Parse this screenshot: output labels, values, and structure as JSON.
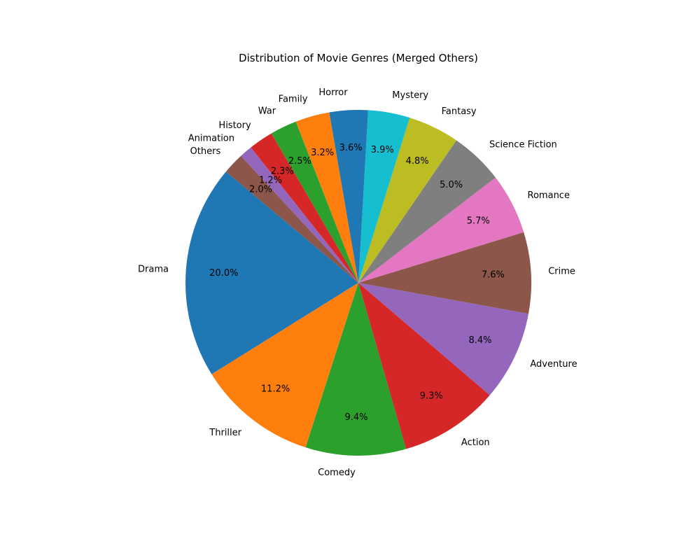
{
  "chart_data": {
    "type": "pie",
    "title": "Distribution of Movie Genres (Merged Others)",
    "start_angle_deg": 140,
    "direction": "counterclockwise",
    "labels": [
      "Drama",
      "Thriller",
      "Comedy",
      "Action",
      "Adventure",
      "Crime",
      "Romance",
      "Science Fiction",
      "Fantasy",
      "Mystery",
      "Horror",
      "Family",
      "War",
      "History",
      "Animation",
      "Others"
    ],
    "values": [
      20.0,
      11.2,
      9.4,
      9.3,
      8.4,
      7.6,
      5.7,
      5.0,
      4.8,
      3.9,
      3.6,
      3.2,
      2.5,
      2.3,
      1.2,
      2.0
    ],
    "value_labels": [
      "20.0%",
      "11.2%",
      "9.4%",
      "9.3%",
      "8.4%",
      "7.6%",
      "5.7%",
      "5.0%",
      "4.8%",
      "3.9%",
      "3.6%",
      "3.2%",
      "2.5%",
      "2.3%",
      "1.2%",
      "2.0%"
    ],
    "colors": [
      "#1f77b4",
      "#ff7f0e",
      "#2ca02c",
      "#d62728",
      "#9467bd",
      "#8c564b",
      "#e377c2",
      "#7f7f7f",
      "#bcbd22",
      "#17becf",
      "#1f77b4",
      "#ff7f0e",
      "#2ca02c",
      "#d62728",
      "#9467bd",
      "#8c564b"
    ]
  }
}
